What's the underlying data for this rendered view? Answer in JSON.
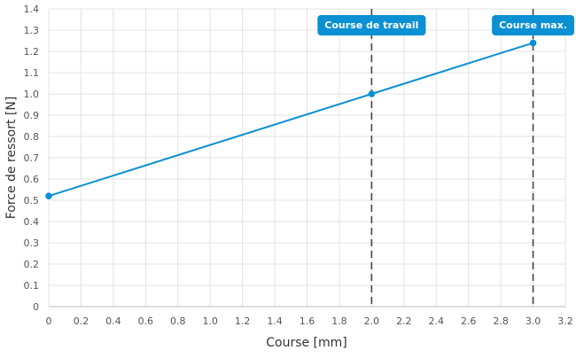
{
  "colors": {
    "series": "#0b90d3",
    "grid": "#e3e3e3",
    "marker_line": "#444444",
    "annotation_bg": "#0b90d3"
  },
  "chart_data": {
    "type": "line",
    "xlabel": "Course [mm]",
    "ylabel": "Force de ressort [N]",
    "xlim": [
      0,
      3.2
    ],
    "ylim": [
      0,
      1.4
    ],
    "x_ticks": [
      "0",
      "0.2",
      "0.4",
      "0.6",
      "0.8",
      "1.0",
      "1.2",
      "1.4",
      "1.6",
      "1.8",
      "2.0",
      "2.2",
      "2.4",
      "2.6",
      "2.8",
      "3.0",
      "3.2"
    ],
    "y_ticks": [
      "0",
      "0.1",
      "0.2",
      "0.3",
      "0.4",
      "0.5",
      "0.6",
      "0.7",
      "0.8",
      "0.9",
      "1.0",
      "1.1",
      "1.2",
      "1.3",
      "1.4"
    ],
    "grid": true,
    "series": [
      {
        "x": [
          0,
          2.0,
          3.0
        ],
        "y": [
          0.52,
          1.0,
          1.24
        ]
      }
    ],
    "annotations": [
      {
        "x": 2.0,
        "label": "Course de travail"
      },
      {
        "x": 3.0,
        "label": "Course max."
      }
    ]
  }
}
